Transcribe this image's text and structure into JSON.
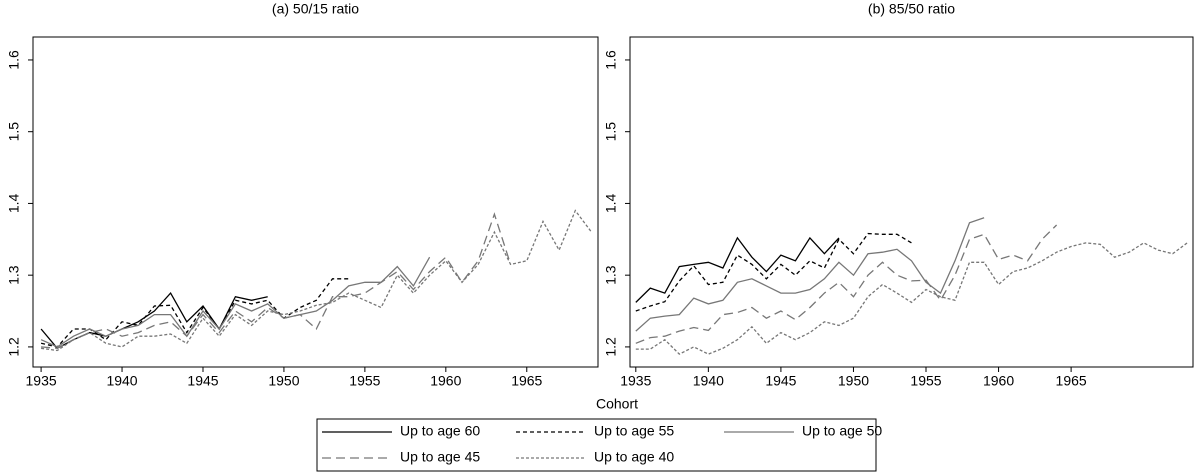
{
  "xlabel": "Cohort",
  "chart_data": [
    {
      "type": "line",
      "title": "(a) 50/15 ratio",
      "x": [
        1935,
        1936,
        1937,
        1938,
        1939,
        1940,
        1941,
        1942,
        1943,
        1944,
        1945,
        1946,
        1947,
        1948,
        1949,
        1950,
        1951,
        1952,
        1953,
        1954,
        1955,
        1956,
        1957,
        1958,
        1959,
        1960,
        1961,
        1962,
        1963,
        1964,
        1965,
        1966,
        1967,
        1968,
        1969
      ],
      "xlim": [
        1934.5,
        1969.4
      ],
      "xticks": [
        1935,
        1940,
        1945,
        1950,
        1955,
        1960,
        1965
      ],
      "ylim": [
        1.172,
        1.632
      ],
      "yticks": [
        1.2,
        1.3,
        1.4,
        1.5,
        1.6
      ],
      "series": [
        {
          "name": "Up to age 60",
          "color": "#000000",
          "dash": "none",
          "values": [
            1.225,
            1.198,
            1.21,
            1.22,
            1.215,
            1.225,
            1.235,
            1.25,
            1.275,
            1.235,
            1.257,
            1.225,
            1.27,
            1.265,
            1.27,
            null,
            null,
            null,
            null,
            null,
            null,
            null,
            null,
            null,
            null,
            null,
            null,
            null,
            null,
            null,
            null,
            null,
            null,
            null,
            null
          ]
        },
        {
          "name": "Up to age 55",
          "color": "#000000",
          "dash": "4,3",
          "values": [
            1.205,
            1.2,
            1.225,
            1.225,
            1.21,
            1.235,
            1.23,
            1.257,
            1.258,
            1.22,
            1.255,
            1.225,
            1.265,
            1.26,
            1.265,
            1.24,
            1.255,
            1.265,
            1.295,
            1.295,
            null,
            null,
            null,
            null,
            null,
            null,
            null,
            null,
            null,
            null,
            null,
            null,
            null,
            null,
            null
          ]
        },
        {
          "name": "Up to age 50",
          "color": "#777777",
          "dash": "none",
          "values": [
            1.21,
            1.2,
            1.215,
            1.225,
            1.215,
            1.225,
            1.23,
            1.245,
            1.245,
            1.215,
            1.25,
            1.225,
            1.26,
            1.25,
            1.26,
            1.24,
            1.245,
            1.25,
            1.265,
            1.285,
            1.29,
            1.29,
            1.312,
            1.285,
            1.325,
            null,
            null,
            null,
            null,
            null,
            null,
            null,
            null,
            null,
            null
          ]
        },
        {
          "name": "Up to age 45",
          "color": "#777777",
          "dash": "9,5",
          "values": [
            1.2,
            1.198,
            1.21,
            1.22,
            1.225,
            1.215,
            1.22,
            1.23,
            1.235,
            1.215,
            1.245,
            1.22,
            1.25,
            1.235,
            1.255,
            1.24,
            1.245,
            1.225,
            1.27,
            1.27,
            1.275,
            1.29,
            1.305,
            1.28,
            1.305,
            1.325,
            1.29,
            1.32,
            1.385,
            1.315,
            null,
            null,
            null,
            null,
            null
          ]
        },
        {
          "name": "Up to age 40",
          "color": "#777777",
          "dash": "3,2",
          "values": [
            1.198,
            1.195,
            1.21,
            1.22,
            1.205,
            1.2,
            1.215,
            1.215,
            1.218,
            1.205,
            1.24,
            1.215,
            1.245,
            1.23,
            1.25,
            1.245,
            1.25,
            1.258,
            1.262,
            1.275,
            1.265,
            1.255,
            1.3,
            1.275,
            1.3,
            1.32,
            1.29,
            1.315,
            1.36,
            1.315,
            1.32,
            1.375,
            1.335,
            1.39,
            1.36
          ]
        }
      ]
    },
    {
      "type": "line",
      "title": "(b) 85/50 ratio",
      "x": [
        1935,
        1936,
        1937,
        1938,
        1939,
        1940,
        1941,
        1942,
        1943,
        1944,
        1945,
        1946,
        1947,
        1948,
        1949,
        1950,
        1951,
        1952,
        1953,
        1954,
        1955,
        1956,
        1957,
        1958,
        1959,
        1960,
        1961,
        1962,
        1963,
        1964,
        1965,
        1966,
        1967,
        1968,
        1969,
        1970,
        1971,
        1972,
        1973
      ],
      "xlim": [
        1934.6,
        1973.4
      ],
      "xticks": [
        1935,
        1940,
        1945,
        1950,
        1955,
        1960,
        1965
      ],
      "ylim": [
        1.172,
        1.632
      ],
      "yticks": [
        1.2,
        1.3,
        1.4,
        1.5,
        1.6
      ],
      "series": [
        {
          "color": "#000000",
          "dash": "none",
          "values": [
            1.262,
            1.282,
            1.275,
            1.312,
            1.315,
            1.318,
            1.31,
            1.352,
            1.325,
            1.305,
            1.328,
            1.32,
            1.352,
            1.33,
            1.352,
            null,
            null,
            null,
            null,
            null,
            null,
            null,
            null,
            null,
            null,
            null,
            null,
            null,
            null,
            null,
            null,
            null,
            null,
            null,
            null,
            null,
            null,
            null,
            null
          ]
        },
        {
          "color": "#000000",
          "dash": "4,3",
          "values": [
            1.25,
            1.257,
            1.263,
            1.292,
            1.313,
            1.287,
            1.29,
            1.328,
            1.315,
            1.295,
            1.315,
            1.3,
            1.32,
            1.31,
            1.35,
            1.33,
            1.358,
            1.357,
            1.357,
            1.345,
            null,
            null,
            null,
            null,
            null,
            null,
            null,
            null,
            null,
            null,
            null,
            null,
            null,
            null,
            null,
            null,
            null,
            null,
            null
          ]
        },
        {
          "color": "#777777",
          "dash": "none",
          "values": [
            1.222,
            1.24,
            1.243,
            1.245,
            1.268,
            1.26,
            1.265,
            1.29,
            1.295,
            1.285,
            1.275,
            1.275,
            1.28,
            1.295,
            1.318,
            1.3,
            1.33,
            1.332,
            1.336,
            1.32,
            1.29,
            1.275,
            1.32,
            1.373,
            1.38,
            null,
            null,
            null,
            null,
            null,
            null,
            null,
            null,
            null,
            null,
            null,
            null,
            null,
            null
          ]
        },
        {
          "color": "#777777",
          "dash": "9,5",
          "values": [
            1.205,
            1.213,
            1.215,
            1.222,
            1.227,
            1.223,
            1.245,
            1.248,
            1.255,
            1.24,
            1.25,
            1.238,
            1.255,
            1.275,
            1.29,
            1.27,
            1.3,
            1.318,
            1.3,
            1.292,
            1.293,
            1.265,
            1.3,
            1.35,
            1.357,
            1.322,
            1.328,
            1.32,
            1.35,
            1.37,
            null,
            null,
            null,
            null,
            null,
            null,
            null,
            null,
            null
          ]
        },
        {
          "color": "#777777",
          "dash": "3,2",
          "values": [
            1.197,
            1.197,
            1.21,
            1.19,
            1.2,
            1.19,
            1.198,
            1.21,
            1.228,
            1.205,
            1.22,
            1.21,
            1.22,
            1.235,
            1.23,
            1.24,
            1.27,
            1.287,
            1.275,
            1.262,
            1.28,
            1.27,
            1.265,
            1.318,
            1.318,
            1.287,
            1.305,
            1.31,
            1.32,
            1.332,
            1.34,
            1.345,
            1.343,
            1.325,
            1.332,
            1.345,
            1.335,
            1.33,
            1.345
          ]
        }
      ]
    }
  ]
}
